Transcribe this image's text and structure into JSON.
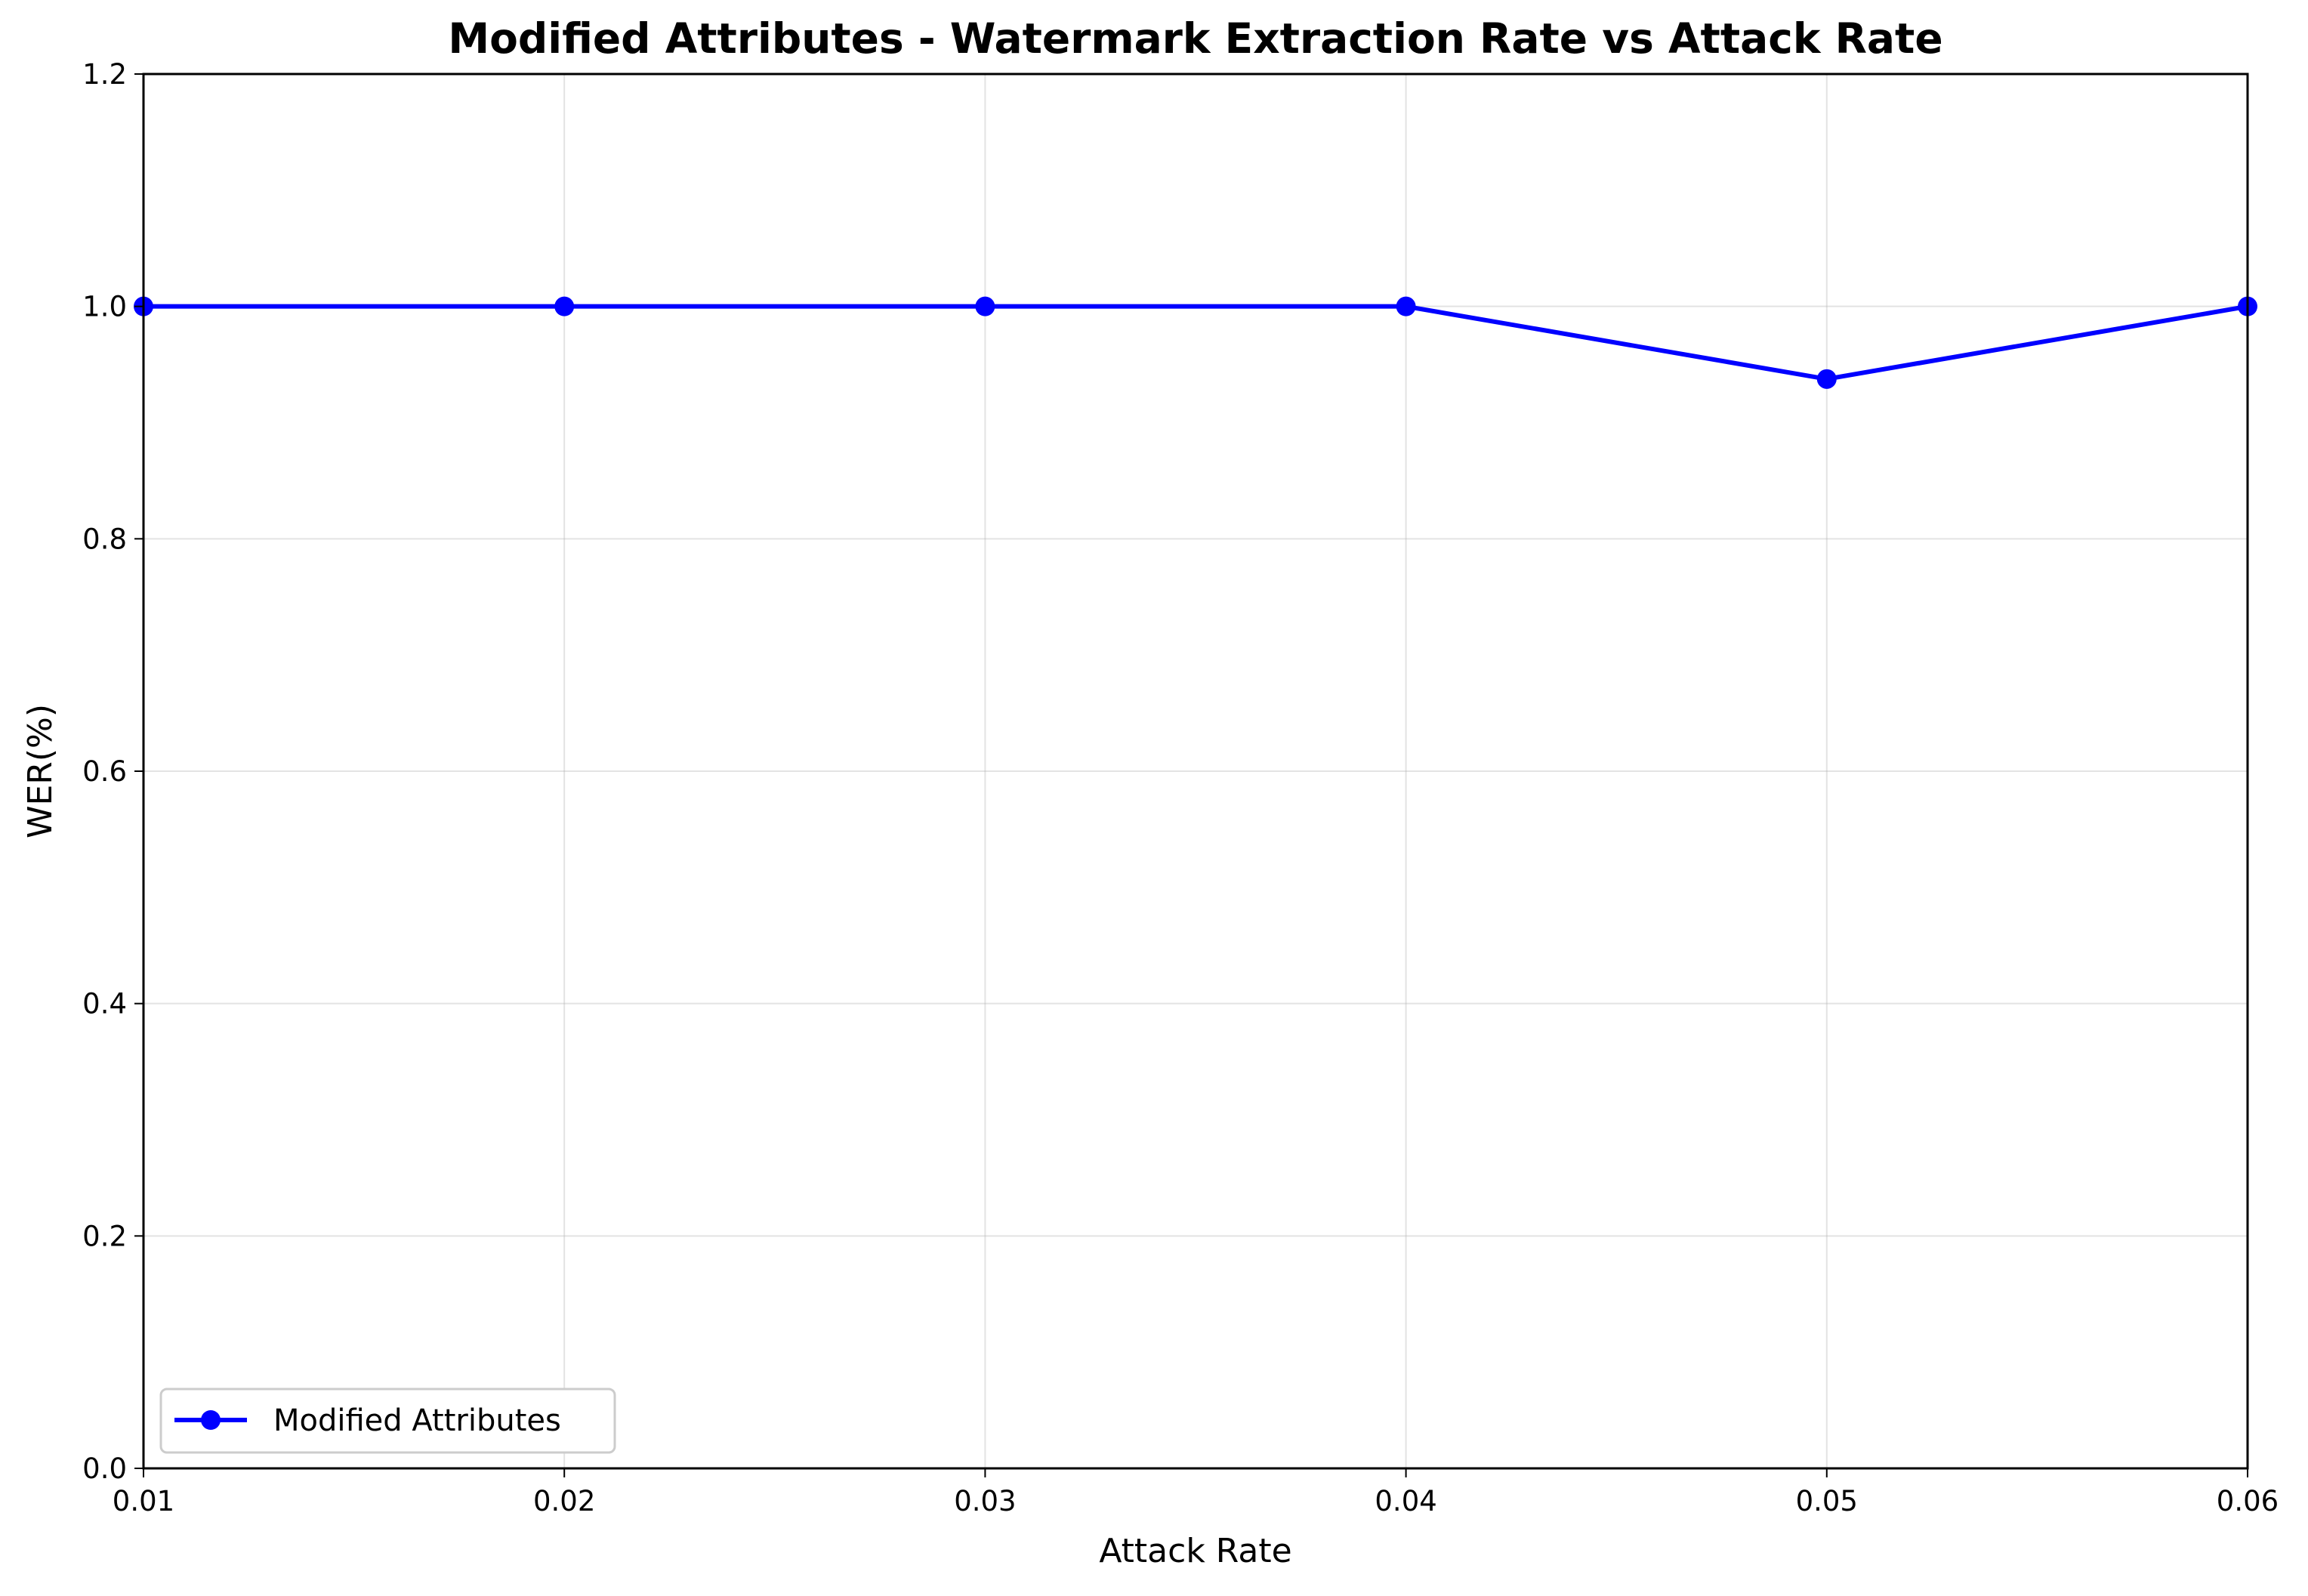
{
  "chart_data": {
    "type": "line",
    "title": "Modified Attributes - Watermark Extraction Rate vs Attack Rate",
    "xlabel": "Attack Rate",
    "ylabel": "WER(%)",
    "xlim": [
      0.01,
      0.06
    ],
    "ylim": [
      0.0,
      1.2
    ],
    "x_ticks": [
      "0.01",
      "0.02",
      "0.03",
      "0.04",
      "0.05",
      "0.06"
    ],
    "y_ticks": [
      "0.0",
      "0.2",
      "0.4",
      "0.6",
      "0.8",
      "1.0",
      "1.2"
    ],
    "grid": true,
    "legend_position": "lower-left",
    "series": [
      {
        "name": "Modified Attributes",
        "color": "#0000ff",
        "marker": "circle",
        "x": [
          0.01,
          0.02,
          0.03,
          0.04,
          0.05,
          0.06
        ],
        "values": [
          1.0,
          1.0,
          1.0,
          1.0,
          0.9375,
          1.0
        ]
      }
    ]
  }
}
